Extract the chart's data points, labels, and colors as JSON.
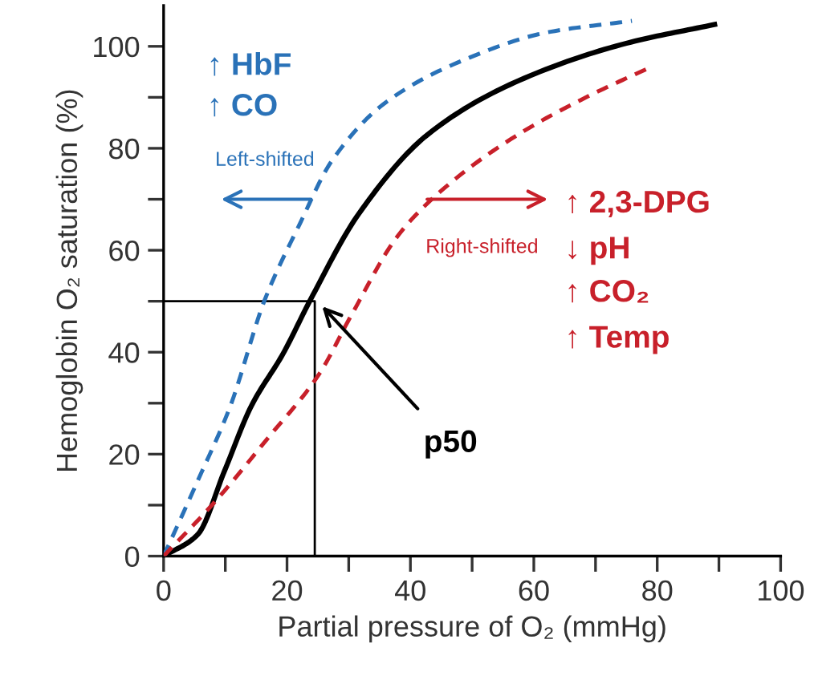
{
  "chart_data": {
    "type": "line",
    "xlabel": "Partial pressure of O₂ (mmHg)",
    "ylabel": "Hemoglobin O₂ saturation (%)",
    "xlim": [
      0,
      100
    ],
    "ylim": [
      0,
      108
    ],
    "xticks": [
      0,
      {
        "value": 10,
        "label": null
      },
      20,
      {
        "value": 30,
        "label": null
      },
      40,
      {
        "value": 50,
        "label": null
      },
      60,
      {
        "value": 70,
        "label": null
      },
      80,
      {
        "value": 90,
        "label": null
      },
      100
    ],
    "yticks": [
      0,
      {
        "value": 10,
        "label": null
      },
      20,
      {
        "value": 30,
        "label": null
      },
      40,
      {
        "value": 50,
        "label": null
      },
      60,
      {
        "value": 70,
        "label": null
      },
      80,
      {
        "value": 90,
        "label": null
      },
      100
    ],
    "grid": false,
    "legend": false,
    "marker": "none",
    "series": [
      {
        "color": "#000000",
        "line_style": "solid",
        "x": [
          0,
          5.5,
          9.9,
          14.2,
          19.4,
          23.8,
          31.6,
          42.9,
          57.6,
          75,
          89.3
        ],
        "values": [
          0,
          4.2,
          16.8,
          29.4,
          39.8,
          50.3,
          67.1,
          82.8,
          93.3,
          100.6,
          104.3
        ]
      },
      {
        "color": "#2a72b8",
        "line_style": "dashed",
        "x": [
          0,
          5.5,
          10.8,
          16.4,
          22,
          27.3,
          36,
          49,
          62,
          75.9
        ],
        "values": [
          0,
          14.7,
          29.4,
          50.3,
          65,
          77.6,
          89,
          97.5,
          102.7,
          105
        ]
      },
      {
        "color": "#c8202a",
        "line_style": "dashed",
        "x": [
          0,
          8.2,
          16.8,
          25.2,
          30.4,
          38,
          45.6,
          57.6,
          68.8,
          78.9
        ],
        "values": [
          0,
          10.5,
          23,
          35.7,
          47.2,
          62.9,
          72.3,
          82.8,
          90.2,
          95.9
        ]
      },
      {
        "color": "#000000",
        "line_style": "solid",
        "x": [
          0,
          24.5,
          24.5
        ],
        "values": [
          50,
          50,
          0
        ]
      }
    ],
    "annotations": [
      "↑ HbF",
      "↑ CO",
      {
        "text": "Left-shifted",
        "x": 24.6,
        "y": 70
      },
      {
        "text": "Right-shifted",
        "x": 42,
        "y": 70
      },
      "↑ 2,3-DPG",
      "↓ pH",
      "↑ CO₂",
      "↑ Temp",
      {
        "text": "p50",
        "x": 24.5,
        "y": 50
      }
    ]
  }
}
